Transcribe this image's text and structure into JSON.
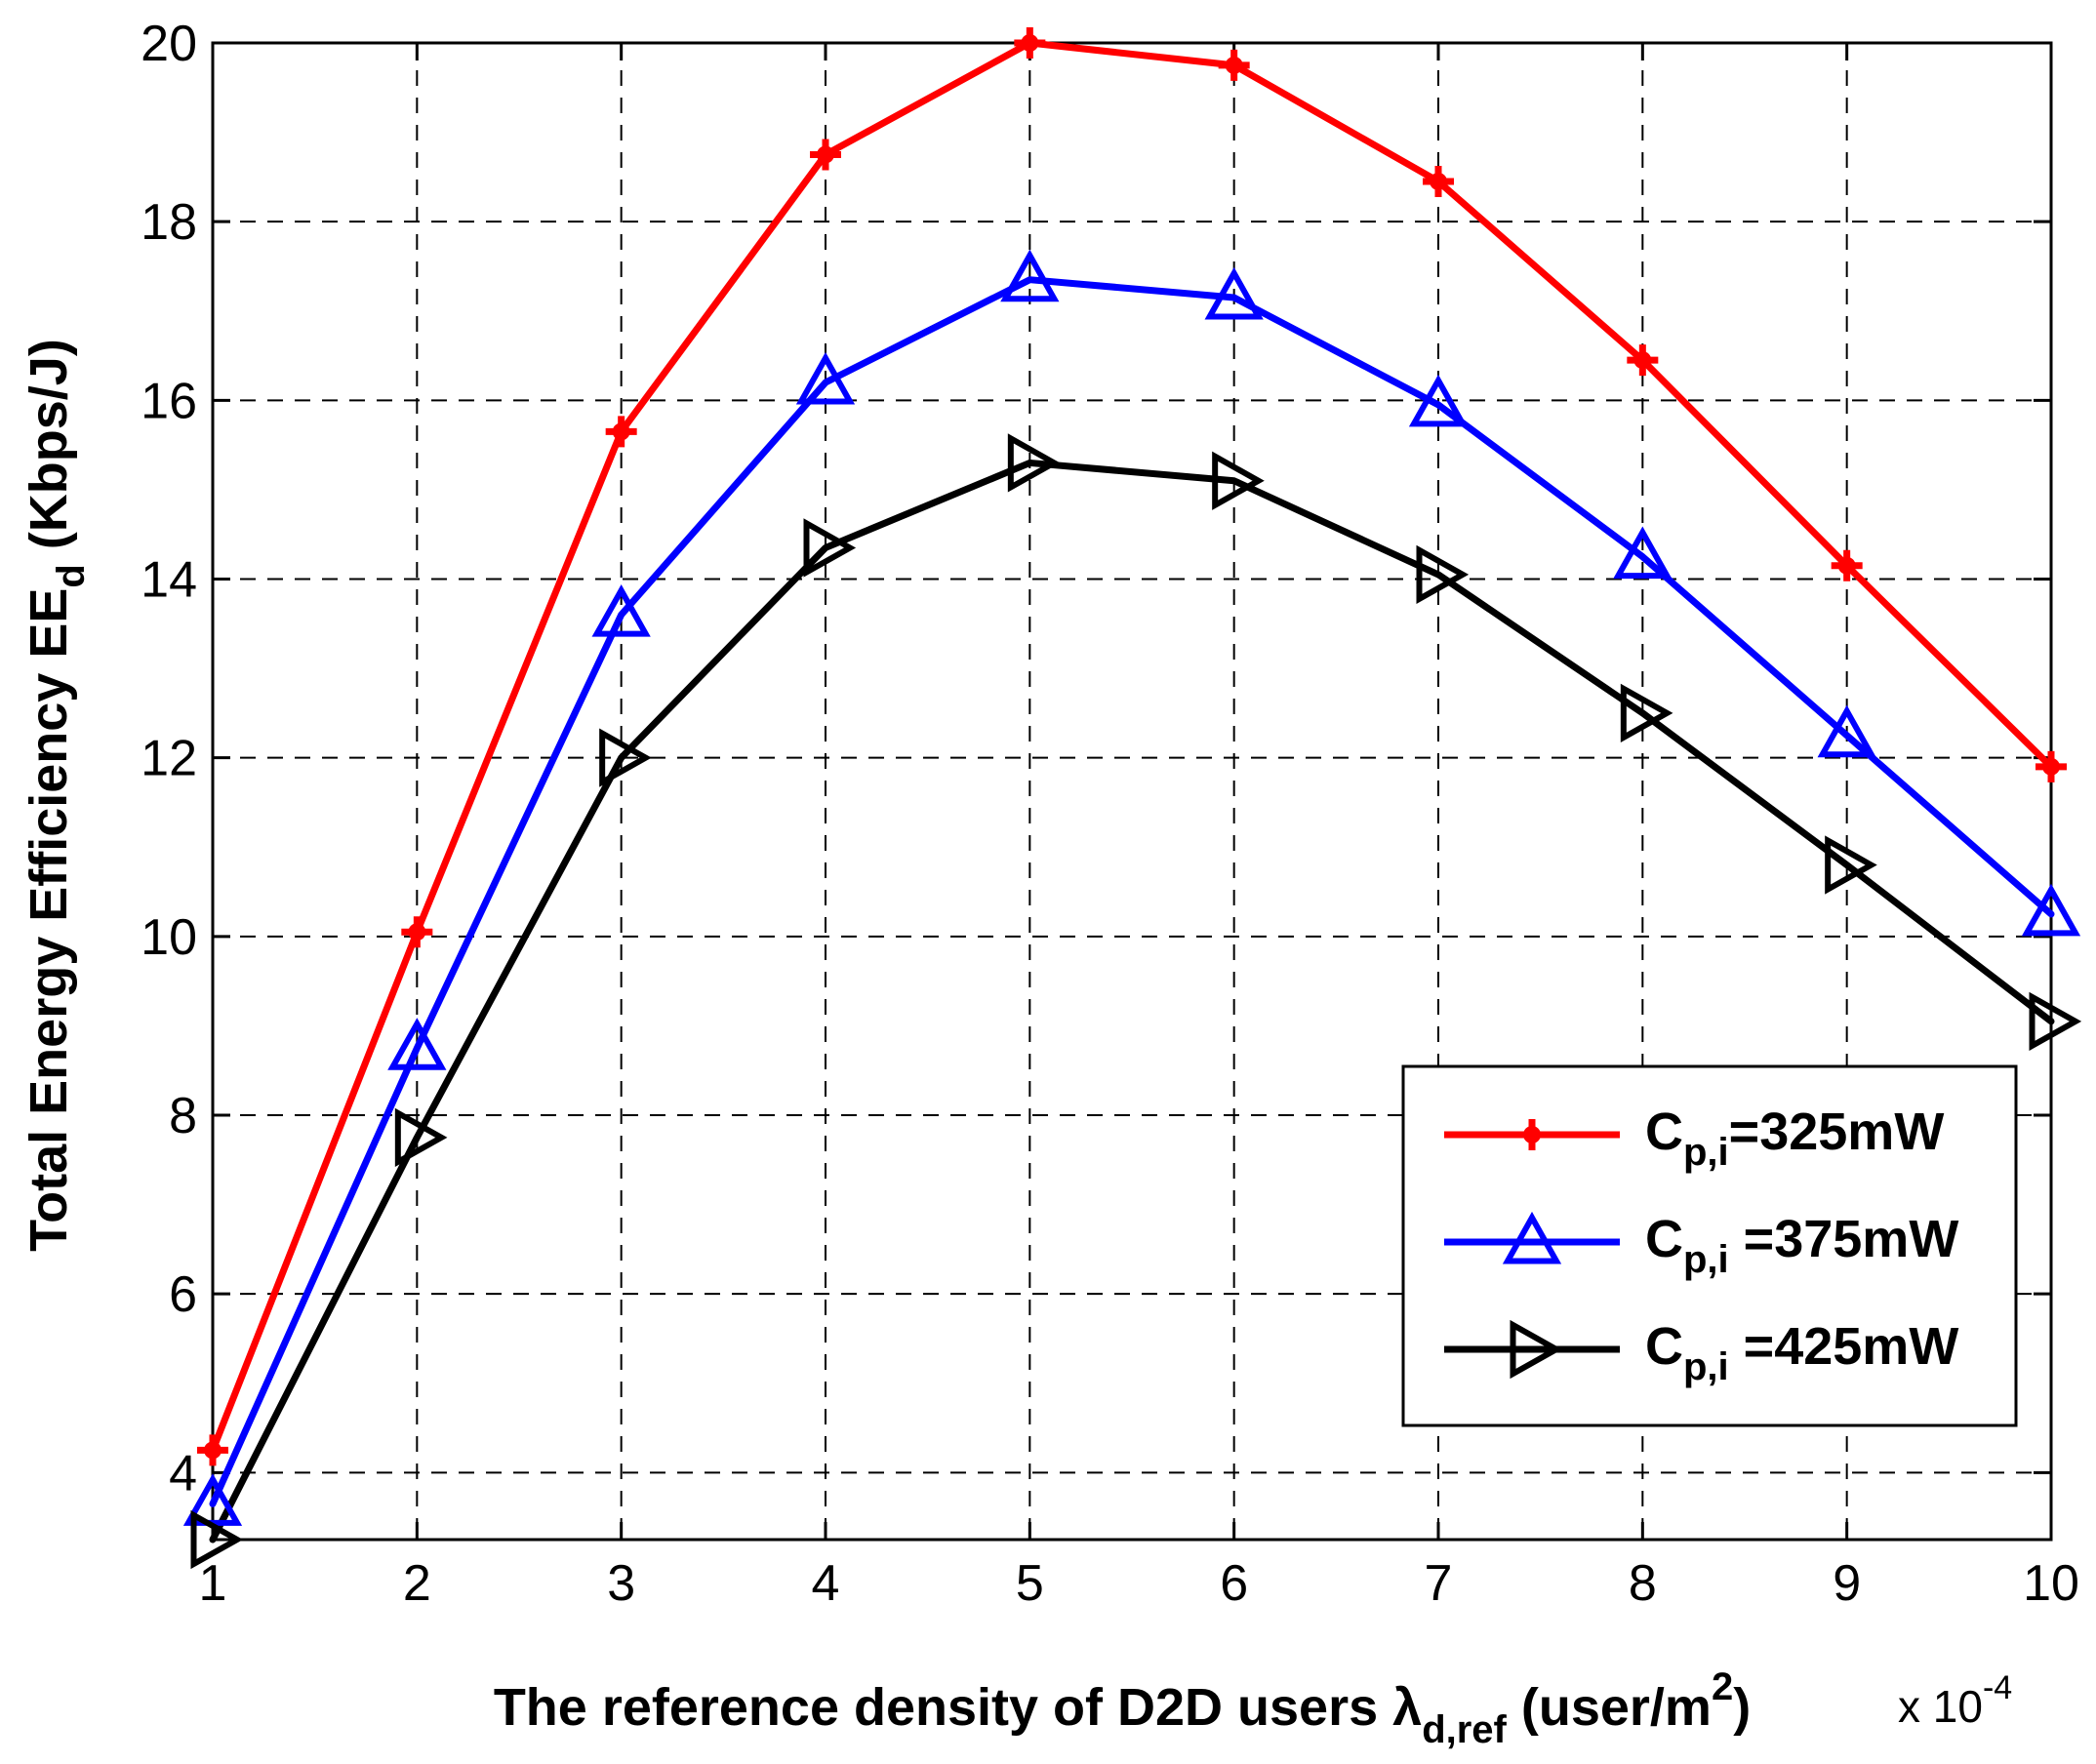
{
  "chart_data": {
    "type": "line",
    "x": [
      1,
      2,
      3,
      4,
      5,
      6,
      7,
      8,
      9,
      10
    ],
    "xlim": [
      1,
      10
    ],
    "ylim": [
      3.25,
      20
    ],
    "xticks": [
      1,
      2,
      3,
      4,
      5,
      6,
      7,
      8,
      9,
      10
    ],
    "yticks": [
      4,
      6,
      8,
      10,
      12,
      14,
      16,
      18,
      20
    ],
    "grid": true,
    "legend_position": "lower-right",
    "x_multiplier": {
      "base": "x 10",
      "exponent": "-4"
    },
    "xlabel": {
      "main": "The reference density of D2D users ",
      "symbol": "λ",
      "subscript": "d,ref",
      "unit_pre": " (user/m",
      "unit_sup": "2",
      "unit_post": ")"
    },
    "ylabel": {
      "main": "Total Energy Efficiency EE",
      "subscript": "d",
      "unit": " (Kbps/J)"
    },
    "series": [
      {
        "name": "Cp,i=325mW",
        "label_main": "C",
        "label_sub": "p,i",
        "label_rest": "=325mW",
        "color": "#ff0000",
        "marker": "plus",
        "values": [
          4.25,
          10.05,
          15.65,
          18.75,
          20.0,
          19.75,
          18.45,
          16.45,
          14.15,
          11.9
        ]
      },
      {
        "name": "Cp,i =375mW",
        "label_main": "C",
        "label_sub": "p,i",
        "label_rest": " =375mW",
        "color": "#0000ff",
        "marker": "triangle-up",
        "values": [
          3.65,
          8.75,
          13.6,
          16.2,
          17.35,
          17.15,
          15.95,
          14.25,
          12.25,
          10.25
        ]
      },
      {
        "name": "Cp,i =425mW",
        "label_main": "C",
        "label_sub": "p,i",
        "label_rest": " =425mW",
        "color": "#000000",
        "marker": "triangle-right",
        "values": [
          3.25,
          7.75,
          12.0,
          14.35,
          15.3,
          15.1,
          14.05,
          12.5,
          10.8,
          9.05
        ]
      }
    ]
  }
}
